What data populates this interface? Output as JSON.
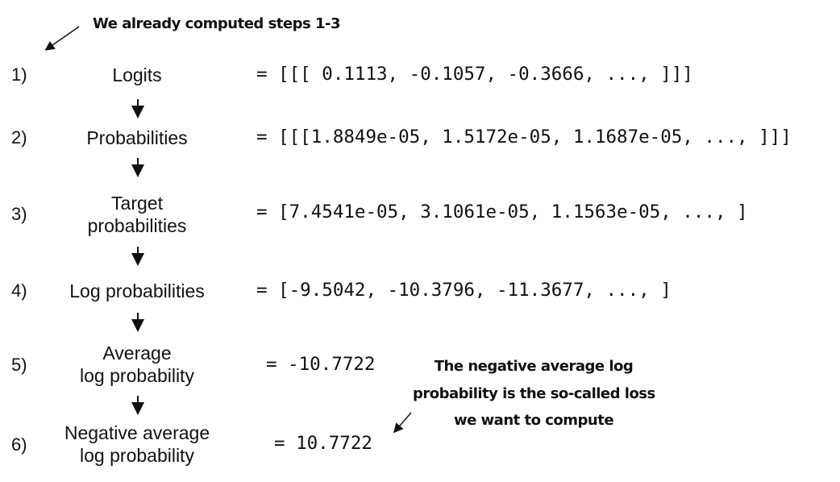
{
  "annotations": {
    "top": "We already computed steps 1-3",
    "bottom": [
      "The negative average log",
      "probability is the so-called loss",
      "we want to compute"
    ]
  },
  "steps": [
    {
      "number": "1)",
      "label": [
        "Logits"
      ],
      "value": "= [[[ 0.1113, -0.1057, -0.3666,  ..., ]]]"
    },
    {
      "number": "2)",
      "label": [
        "Probabilities"
      ],
      "value": "= [[[1.8849e-05, 1.5172e-05, 1.1687e-05,  ..., ]]]"
    },
    {
      "number": "3)",
      "label": [
        "Target",
        "probabilities"
      ],
      "value": "= [7.4541e-05, 3.1061e-05, 1.1563e-05, ..., ]"
    },
    {
      "number": "4)",
      "label": [
        "Log probabilities"
      ],
      "value": "= [-9.5042, -10.3796, -11.3677, ..., ]"
    },
    {
      "number": "5)",
      "label": [
        "Average",
        "log probability"
      ],
      "value": "= -10.7722"
    },
    {
      "number": "6)",
      "label": [
        "Negative average",
        "log probability"
      ],
      "value": "= 10.7722"
    }
  ]
}
